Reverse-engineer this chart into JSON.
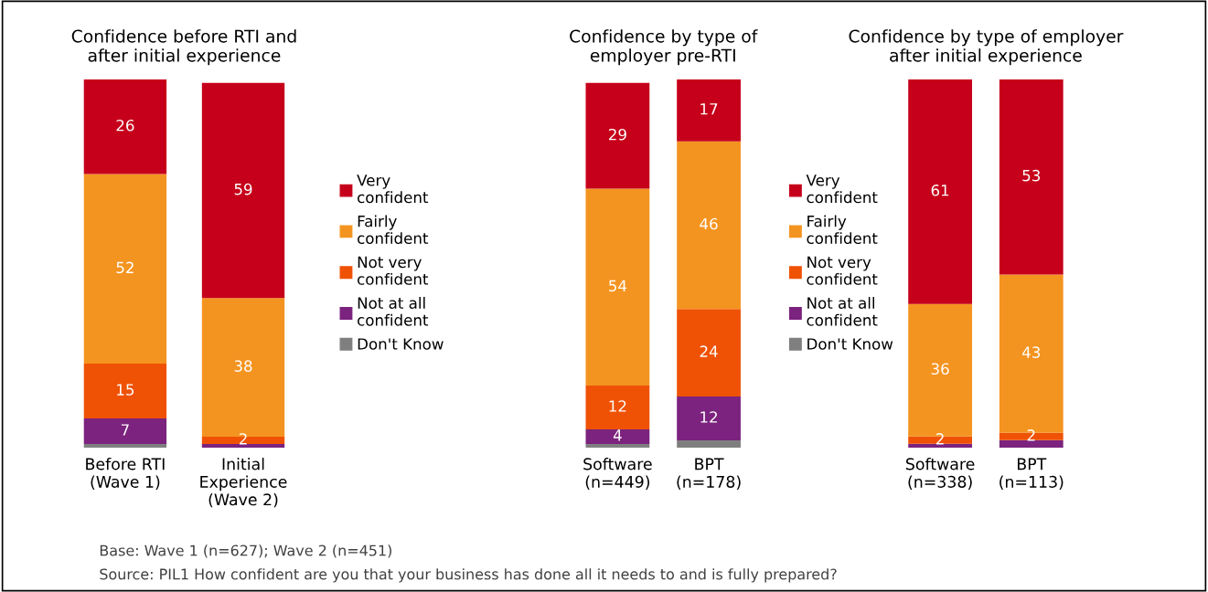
{
  "chart_data": [
    {
      "type": "bar",
      "stacked": true,
      "title": "Confidence before RTI and\nafter initial experience",
      "categories": [
        "Before RTI\n(Wave 1)",
        "Initial\nExperience\n(Wave 2)"
      ],
      "tick_labels": "x",
      "legend": "right",
      "series": [
        {
          "name": "Don't Know",
          "color": "#7f7f7f",
          "values": [
            1,
            0
          ]
        },
        {
          "name": "Not at all\nconfident",
          "color": "#7b237e",
          "values": [
            7,
            1
          ],
          "value_labels": [
            "7",
            null
          ]
        },
        {
          "name": "Not very\nconfident",
          "color": "#ef5205",
          "values": [
            15,
            2
          ],
          "value_labels": [
            "15",
            "2"
          ]
        },
        {
          "name": "Fairly\nconfident",
          "color": "#f49420",
          "values": [
            52,
            38
          ],
          "value_labels": [
            "52",
            "38"
          ]
        },
        {
          "name": "Very\nconfident",
          "color": "#c6001a",
          "values": [
            26,
            59
          ],
          "value_labels": [
            "26",
            "59"
          ]
        }
      ],
      "annotations": [
        "Base: Wave 1 (n=627); Wave 2 (n=451)",
        "Source: PIL1 How confident are you that your business has done all it needs to and is fully prepared?"
      ]
    },
    {
      "type": "bar",
      "stacked": true,
      "title": "Confidence by type of\nemployer pre-RTI",
      "categories": [
        "Software\n(n=449)",
        "BPT\n(n=178)"
      ],
      "tick_labels": "x",
      "legend": "right",
      "series": [
        {
          "name": "Don't Know",
          "color": "#7f7f7f",
          "values": [
            1,
            2
          ]
        },
        {
          "name": "Not at all\nconfident",
          "color": "#7b237e",
          "values": [
            4,
            12
          ],
          "value_labels": [
            "4",
            "12"
          ]
        },
        {
          "name": "Not very\nconfident",
          "color": "#ef5205",
          "values": [
            12,
            24
          ],
          "value_labels": [
            "12",
            "24"
          ]
        },
        {
          "name": "Fairly\nconfident",
          "color": "#f49420",
          "values": [
            54,
            46
          ],
          "value_labels": [
            "54",
            "46"
          ]
        },
        {
          "name": "Very\nconfident",
          "color": "#c6001a",
          "values": [
            29,
            17
          ],
          "value_labels": [
            "29",
            "17"
          ]
        }
      ]
    },
    {
      "type": "bar",
      "stacked": true,
      "title": "Confidence by type of employer\nafter initial experience",
      "categories": [
        "Software\n(n=338)",
        "BPT\n(n=113)"
      ],
      "tick_labels": "x",
      "series": [
        {
          "color": "#7b237e",
          "values": [
            1,
            2
          ]
        },
        {
          "color": "#ef5205",
          "values": [
            2,
            2
          ],
          "value_labels": [
            "2",
            "2"
          ]
        },
        {
          "color": "#f49420",
          "values": [
            36,
            43
          ],
          "value_labels": [
            "36",
            "43"
          ]
        },
        {
          "color": "#c6001a",
          "values": [
            61,
            53
          ],
          "value_labels": [
            "61",
            "53"
          ]
        }
      ]
    }
  ]
}
